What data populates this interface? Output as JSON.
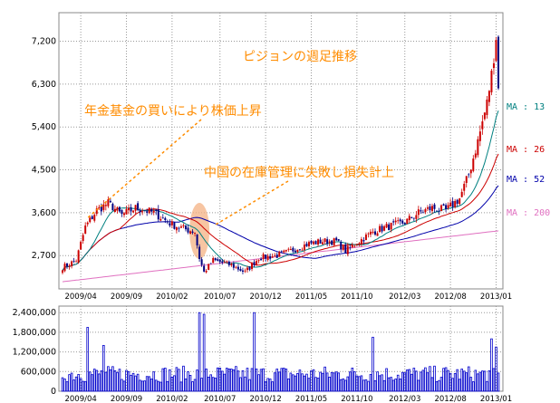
{
  "chart_data": {
    "type": "candlestick",
    "title": "ピジョンの週足推移",
    "annotations": [
      "年金基金の買いにより株価上昇",
      "中国の在庫管理に失敗し損失計上"
    ],
    "price_axis": {
      "ylim": [
        2000,
        7800
      ],
      "ticks": [
        "7,200",
        "6,300",
        "5,400",
        "4,500",
        "3,600",
        "2,700"
      ],
      "tick_values": [
        7200,
        6300,
        5400,
        4500,
        3600,
        2700
      ]
    },
    "volume_axis": {
      "ylim": [
        0,
        2600000
      ],
      "ticks": [
        "2,400,000",
        "1,800,000",
        "1,200,000",
        "600,000",
        "0"
      ],
      "tick_values": [
        2400000,
        1800000,
        1200000,
        600000,
        0
      ]
    },
    "x_ticks": [
      "2009/04",
      "2009/09",
      "2010/02",
      "2010/07",
      "2010/12",
      "2011/05",
      "2011/10",
      "2012/03",
      "2012/08",
      "2013/01"
    ],
    "ma_legend": [
      {
        "label": "MA : 13",
        "color": "#008080"
      },
      {
        "label": "MA : 26",
        "color": "#cc0000"
      },
      {
        "label": "MA : 52",
        "color": "#0000aa"
      },
      {
        "label": "MA : 200",
        "color": "#e070c0"
      }
    ],
    "close_anchors": [
      [
        0,
        2450
      ],
      [
        6,
        2600
      ],
      [
        10,
        3300
      ],
      [
        15,
        3650
      ],
      [
        20,
        3800
      ],
      [
        26,
        3550
      ],
      [
        32,
        3700
      ],
      [
        40,
        3600
      ],
      [
        48,
        3350
      ],
      [
        54,
        3250
      ],
      [
        58,
        3200
      ],
      [
        60,
        2650
      ],
      [
        62,
        2350
      ],
      [
        66,
        2600
      ],
      [
        74,
        2500
      ],
      [
        80,
        2350
      ],
      [
        86,
        2650
      ],
      [
        94,
        2700
      ],
      [
        100,
        2800
      ],
      [
        108,
        2950
      ],
      [
        114,
        3000
      ],
      [
        120,
        3000
      ],
      [
        124,
        2800
      ],
      [
        130,
        3000
      ],
      [
        136,
        3200
      ],
      [
        142,
        3300
      ],
      [
        150,
        3400
      ],
      [
        156,
        3600
      ],
      [
        162,
        3700
      ],
      [
        168,
        3650
      ],
      [
        174,
        3900
      ],
      [
        178,
        4400
      ],
      [
        182,
        5100
      ],
      [
        186,
        5900
      ],
      [
        188,
        6500
      ],
      [
        190,
        7300
      ],
      [
        191,
        6200
      ]
    ],
    "weeks": 192,
    "volume_peaks": [
      [
        11,
        1950000
      ],
      [
        18,
        1400000
      ],
      [
        60,
        2400000
      ],
      [
        62,
        2350000
      ],
      [
        84,
        2400000
      ],
      [
        136,
        1650000
      ],
      [
        188,
        1600000
      ],
      [
        190,
        1350000
      ]
    ],
    "volume_base": 550000,
    "colors": {
      "up": "#cc0000",
      "down": "#000080",
      "volume": "#0000cc",
      "ma13": "#008080",
      "ma26": "#cc0000",
      "ma52": "#0000aa",
      "ma200": "#e070c0",
      "annotation": "#ff8c00",
      "highlight": "#f4b183"
    }
  }
}
